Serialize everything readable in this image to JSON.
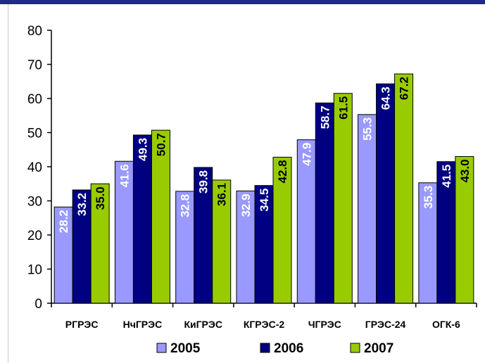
{
  "colors": {
    "top_rule": "#1f2a8a",
    "series_2005": "#9999ff",
    "series_2006": "#000080",
    "series_2007": "#99cc00",
    "axis": "#000000"
  },
  "chart_data": {
    "type": "bar",
    "categories": [
      "РГРЭС",
      "НчГРЭС",
      "КиГРЭС",
      "КГРЭС-2",
      "ЧГРЭС",
      "ГРЭС-24",
      "ОГК-6"
    ],
    "series": [
      {
        "name": "2005",
        "values": [
          28.2,
          41.6,
          32.8,
          32.9,
          47.9,
          55.3,
          35.3
        ],
        "label_color": "#ffffff"
      },
      {
        "name": "2006",
        "values": [
          33.2,
          49.3,
          39.8,
          34.5,
          58.7,
          64.3,
          41.5
        ],
        "label_color": "#ffffff"
      },
      {
        "name": "2007",
        "values": [
          35.0,
          50.7,
          36.1,
          42.8,
          61.5,
          67.2,
          43.0
        ],
        "label_color": "#000000"
      }
    ],
    "ylim": [
      0,
      80
    ],
    "yticks": [
      0,
      10,
      20,
      30,
      40,
      50,
      60,
      70,
      80
    ],
    "title": "",
    "xlabel": "",
    "ylabel": "",
    "grid": false,
    "legend": "bottom",
    "data_labels": "inside-rotated"
  }
}
